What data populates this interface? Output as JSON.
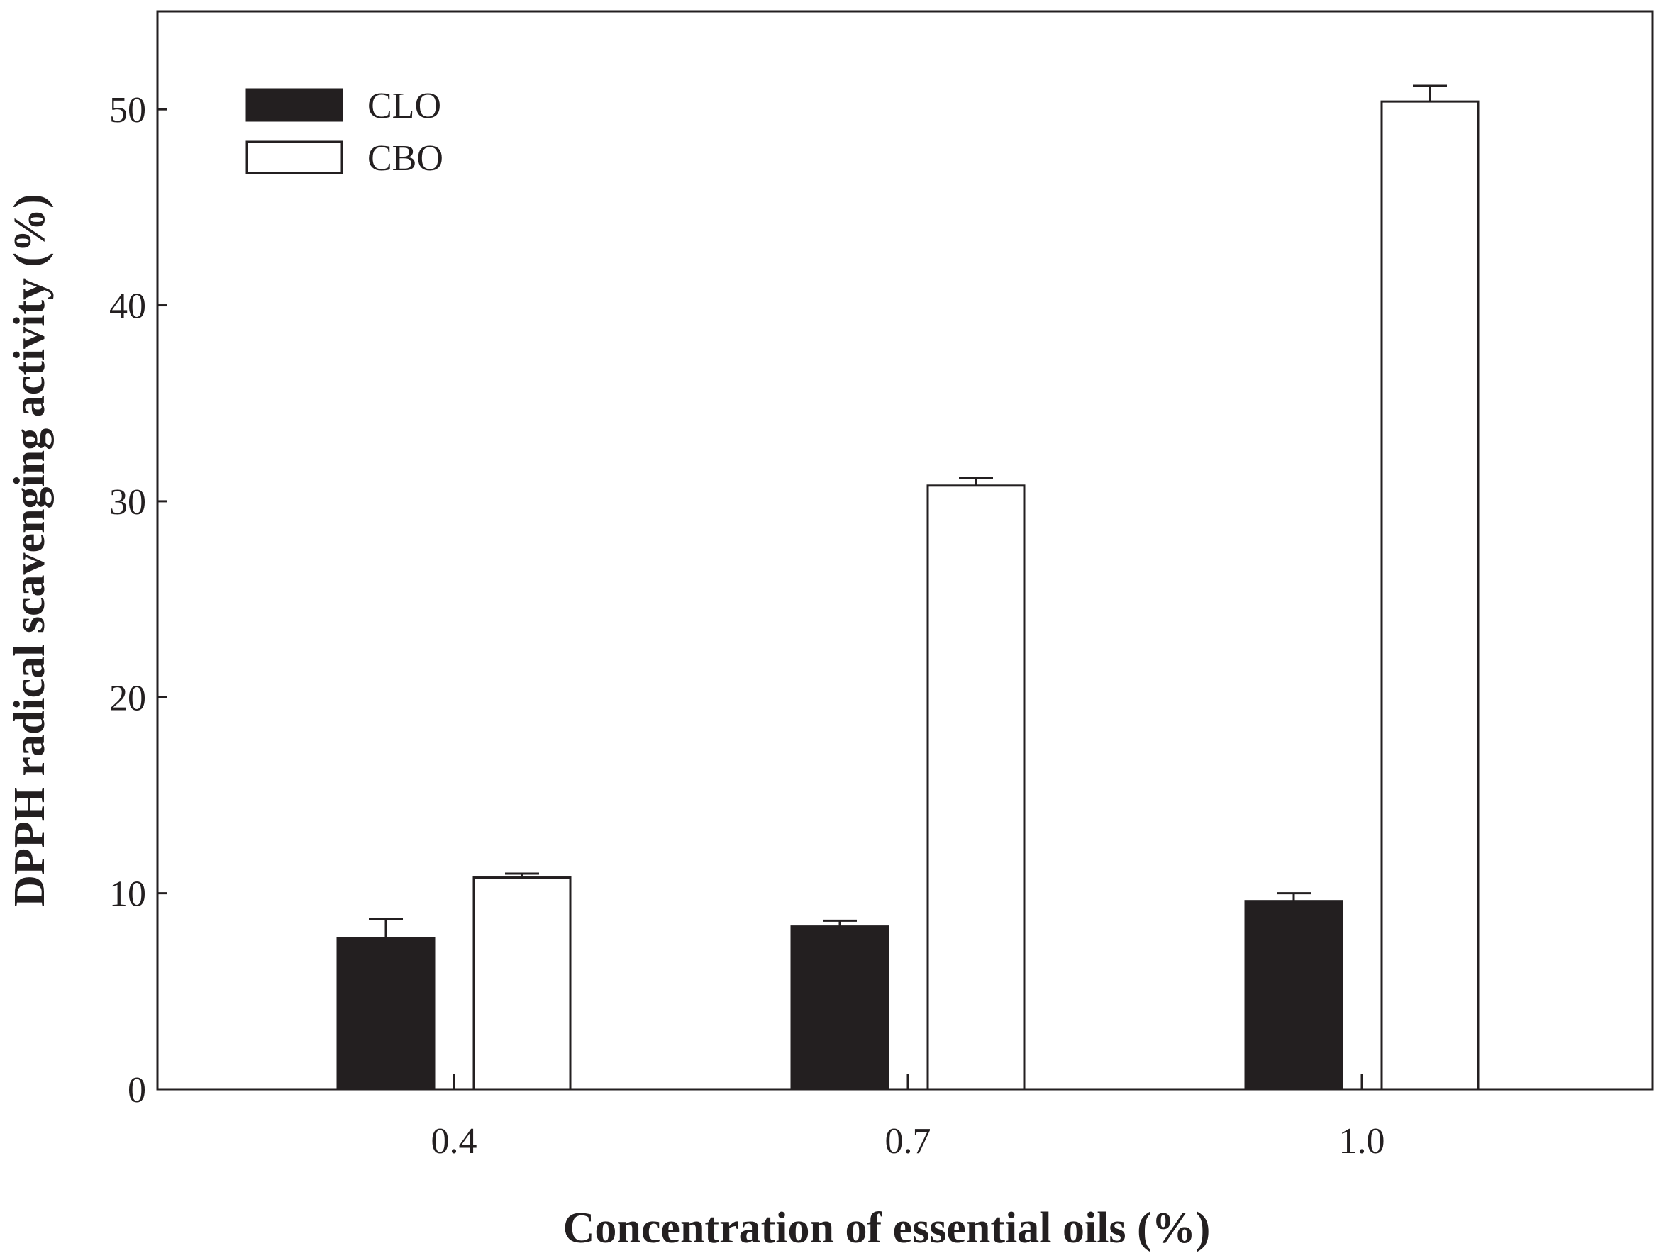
{
  "chart_data": {
    "type": "bar",
    "title": "",
    "xlabel": "Concentration of essential oils (%)",
    "ylabel": "DPPH radical scavenging activity (%)",
    "categories": [
      "0.4",
      "0.7",
      "1.0"
    ],
    "ylim": [
      0,
      55
    ],
    "yticks": [
      0,
      10,
      20,
      30,
      40,
      50
    ],
    "ytick_labels": [
      "0",
      "10",
      "20",
      "30",
      "40",
      "50"
    ],
    "grid": false,
    "legend_position": "top-left",
    "series": [
      {
        "name": "CLO",
        "fill": "#231f20",
        "values": [
          7.7,
          8.3,
          9.6
        ],
        "errors": [
          1.0,
          0.3,
          0.4
        ]
      },
      {
        "name": "CBO",
        "fill": "#ffffff",
        "values": [
          10.8,
          30.8,
          50.4
        ],
        "errors": [
          0.2,
          0.4,
          0.8
        ]
      }
    ]
  },
  "colors": {
    "ink": "#231f20",
    "background": "#ffffff"
  }
}
